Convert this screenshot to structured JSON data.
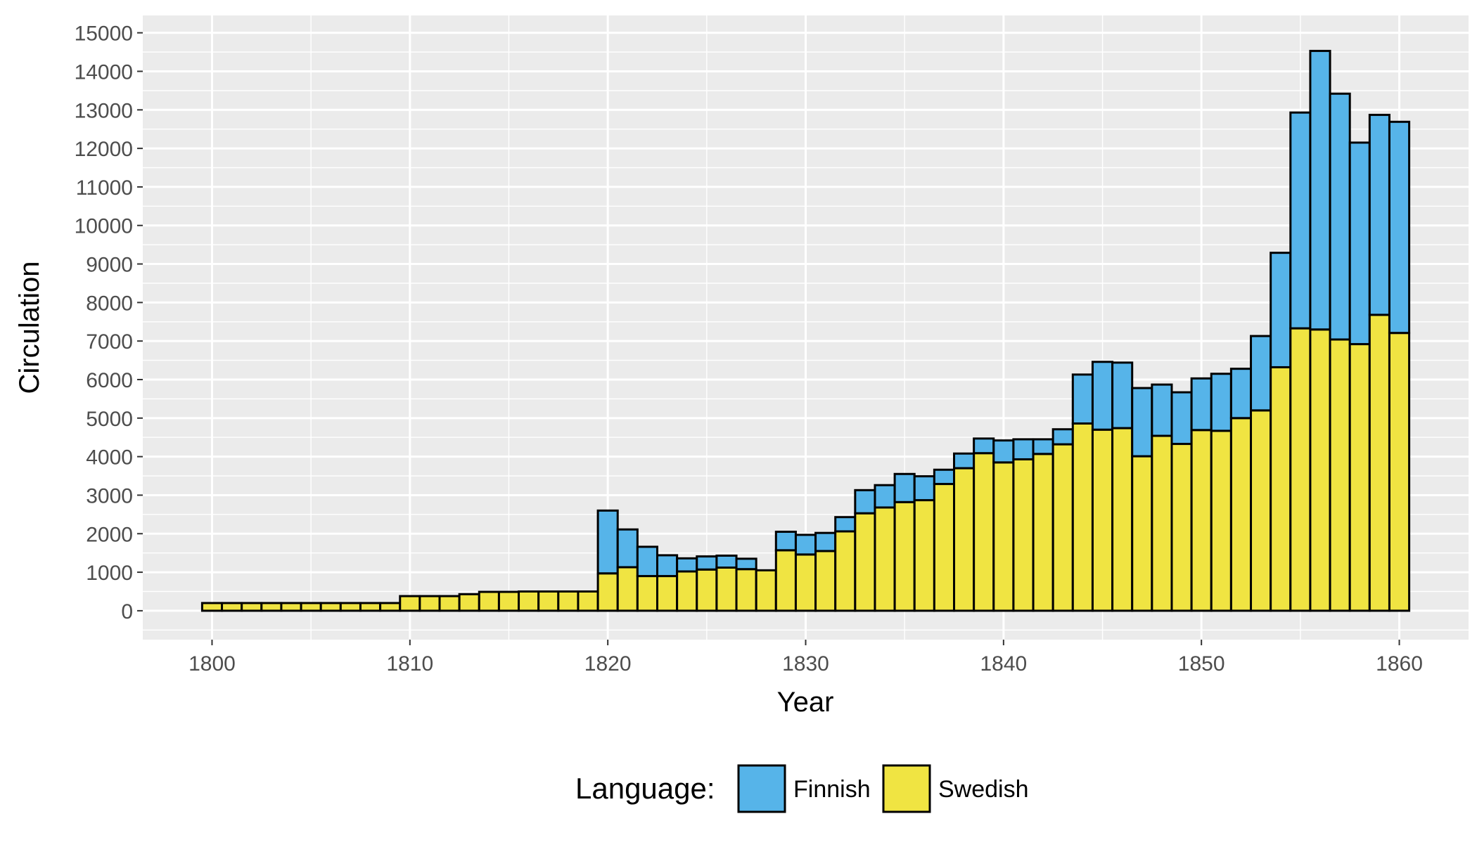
{
  "chart_data": {
    "type": "bar",
    "stacked": true,
    "xlabel": "Year",
    "ylabel": "Circulation",
    "xlim": [
      1796.5,
      1863.5
    ],
    "ylim": [
      -750,
      15450
    ],
    "x_ticks": [
      1800,
      1810,
      1820,
      1830,
      1840,
      1850,
      1860
    ],
    "y_ticks": [
      0,
      1000,
      2000,
      3000,
      4000,
      5000,
      6000,
      7000,
      8000,
      9000,
      10000,
      11000,
      12000,
      13000,
      14000,
      15000
    ],
    "grid": true,
    "legend": {
      "title": "Language:",
      "position": "bottom"
    },
    "colors": {
      "Finnish": "#56b4e9",
      "Swedish": "#f0e442",
      "panel": "#ebebeb",
      "grid": "#ffffff",
      "outline": "#000000"
    },
    "x": [
      1800,
      1801,
      1802,
      1803,
      1804,
      1805,
      1806,
      1807,
      1808,
      1809,
      1810,
      1811,
      1812,
      1813,
      1814,
      1815,
      1816,
      1817,
      1818,
      1819,
      1820,
      1821,
      1822,
      1823,
      1824,
      1825,
      1826,
      1827,
      1828,
      1829,
      1830,
      1831,
      1832,
      1833,
      1834,
      1835,
      1836,
      1837,
      1838,
      1839,
      1840,
      1841,
      1842,
      1843,
      1844,
      1845,
      1846,
      1847,
      1848,
      1849,
      1850,
      1851,
      1852,
      1853,
      1854,
      1855,
      1856,
      1857,
      1858,
      1859,
      1860
    ],
    "series": [
      {
        "name": "Swedish",
        "values": [
          200,
          200,
          200,
          200,
          200,
          200,
          200,
          200,
          200,
          200,
          380,
          380,
          380,
          430,
          490,
          490,
          500,
          500,
          500,
          500,
          970,
          1130,
          900,
          900,
          1020,
          1070,
          1120,
          1080,
          1050,
          1570,
          1460,
          1550,
          2060,
          2530,
          2680,
          2820,
          2870,
          3290,
          3700,
          4090,
          3850,
          3930,
          4070,
          4320,
          4860,
          4700,
          4740,
          4010,
          4540,
          4330,
          4690,
          4670,
          5000,
          5200,
          6320,
          7330,
          7300,
          7040,
          6920,
          7680,
          7210
        ]
      },
      {
        "name": "Finnish",
        "values": [
          0,
          0,
          0,
          0,
          0,
          0,
          0,
          0,
          0,
          0,
          0,
          0,
          0,
          0,
          0,
          0,
          0,
          0,
          0,
          0,
          1630,
          980,
          760,
          540,
          340,
          340,
          310,
          270,
          0,
          480,
          510,
          470,
          370,
          600,
          580,
          730,
          620,
          370,
          380,
          380,
          570,
          520,
          380,
          390,
          1270,
          1760,
          1700,
          1770,
          1330,
          1340,
          1340,
          1480,
          1280,
          1930,
          2970,
          5600,
          7230,
          6380,
          5230,
          5190,
          5480
        ]
      }
    ]
  }
}
